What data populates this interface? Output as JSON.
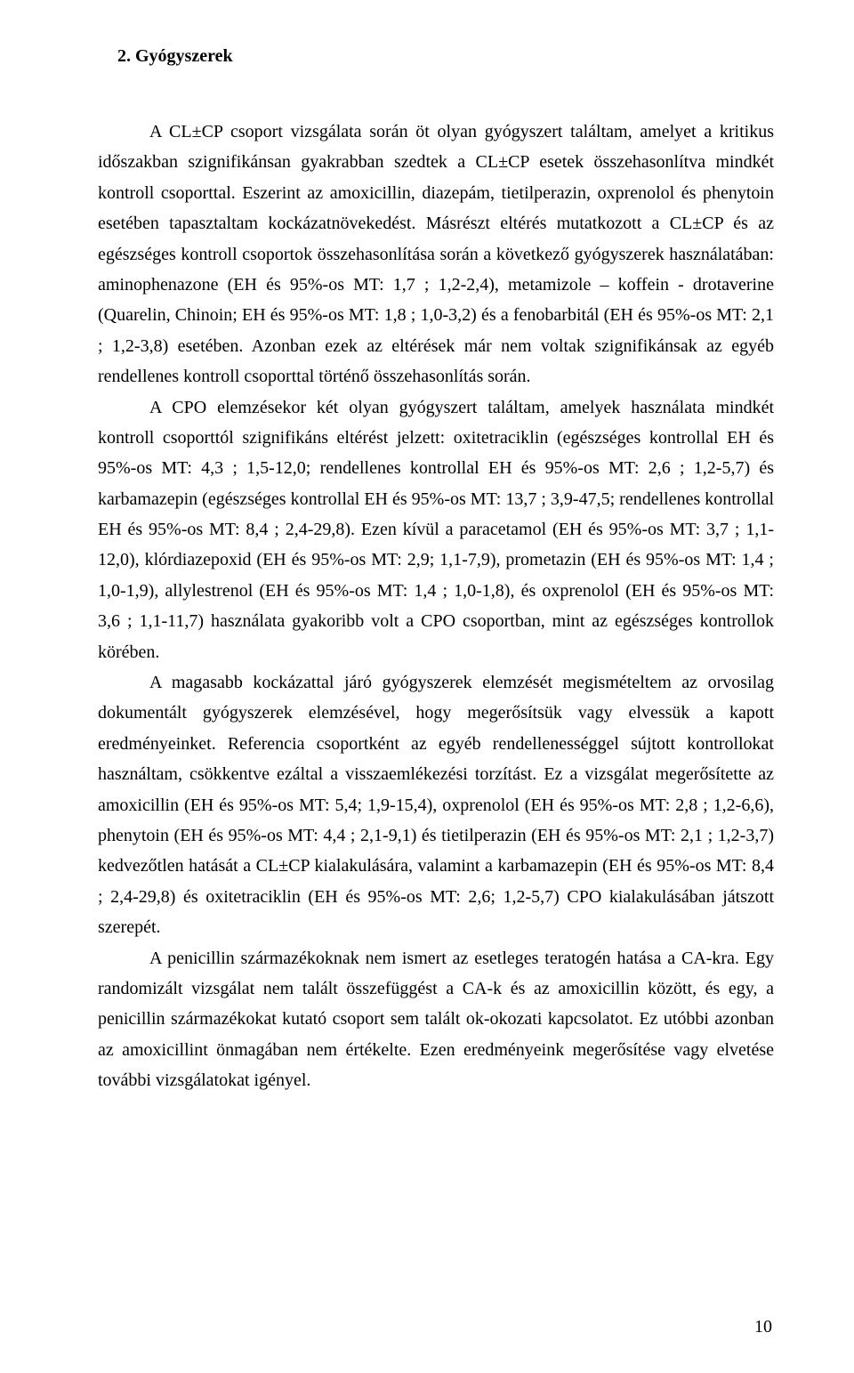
{
  "heading": "2.  Gyógyszerek",
  "paragraphs": [
    "A CL±CP csoport vizsgálata során öt olyan gyógyszert találtam, amelyet a kritikus időszakban szignifikánsan gyakrabban szedtek a CL±CP esetek összehasonlítva mindkét kontroll csoporttal. Eszerint az amoxicillin, diazepám, tietilperazin, oxprenolol és phenytoin esetében tapasztaltam kockázatnövekedést. Másrészt eltérés mutatkozott a CL±CP és az egészséges kontroll csoportok összehasonlítása során a következő gyógyszerek használatában: aminophenazone (EH és 95%-os MT: 1,7 ; 1,2-2,4), metamizole – koffein - drotaverine (Quarelin, Chinoin; EH és 95%-os MT: 1,8 ; 1,0-3,2) és a fenobarbitál (EH és 95%-os MT: 2,1 ; 1,2-3,8) esetében. Azonban ezek az eltérések már nem voltak szignifikánsak az egyéb rendellenes kontroll csoporttal történő összehasonlítás során.",
    "A CPO elemzésekor két olyan gyógyszert találtam, amelyek használata mindkét kontroll csoporttól szignifikáns eltérést jelzett: oxitetraciklin (egészséges kontrollal EH és 95%-os MT: 4,3 ; 1,5-12,0; rendellenes kontrollal EH és 95%-os MT: 2,6 ; 1,2-5,7) és karbamazepin (egészséges kontrollal EH és 95%-os MT: 13,7 ; 3,9-47,5; rendellenes kontrollal EH és 95%-os MT: 8,4 ; 2,4-29,8). Ezen kívül a paracetamol (EH és 95%-os MT: 3,7 ; 1,1-12,0), klórdiazepoxid (EH és 95%-os MT: 2,9; 1,1-7,9), prometazin (EH és 95%-os MT: 1,4 ; 1,0-1,9), allylestrenol (EH és 95%-os MT: 1,4 ; 1,0-1,8), és oxprenolol (EH és 95%-os MT: 3,6 ; 1,1-11,7) használata gyakoribb volt a CPO csoportban, mint az egészséges kontrollok körében.",
    "A magasabb kockázattal járó gyógyszerek elemzését megismételtem az orvosilag dokumentált gyógyszerek elemzésével, hogy megerősítsük vagy elvessük a kapott eredményeinket. Referencia csoportként az egyéb rendellenességgel sújtott kontrollokat használtam, csökkentve ezáltal a visszaemlékezési torzítást. Ez a vizsgálat megerősítette az amoxicillin (EH és 95%-os MT: 5,4; 1,9-15,4), oxprenolol (EH és 95%-os MT: 2,8 ; 1,2-6,6), phenytoin (EH és 95%-os MT: 4,4 ; 2,1-9,1) és tietilperazin (EH és 95%-os MT: 2,1 ; 1,2-3,7) kedvezőtlen hatását a CL±CP kialakulására, valamint a karbamazepin (EH és 95%-os MT: 8,4 ; 2,4-29,8) és oxitetraciklin (EH és 95%-os MT: 2,6; 1,2-5,7) CPO kialakulásában játszott szerepét.",
    "A penicillin származékoknak nem ismert az esetleges teratogén hatása a CA-kra. Egy randomizált vizsgálat nem talált összefüggést a CA-k és az amoxicillin között, és egy, a penicillin származékokat kutató csoport sem talált ok-okozati kapcsolatot. Ez utóbbi azonban az amoxicillint önmagában nem értékelte. Ezen eredményeink megerősítése vagy elvetése további vizsgálatokat igényel."
  ],
  "pageNumber": "10"
}
